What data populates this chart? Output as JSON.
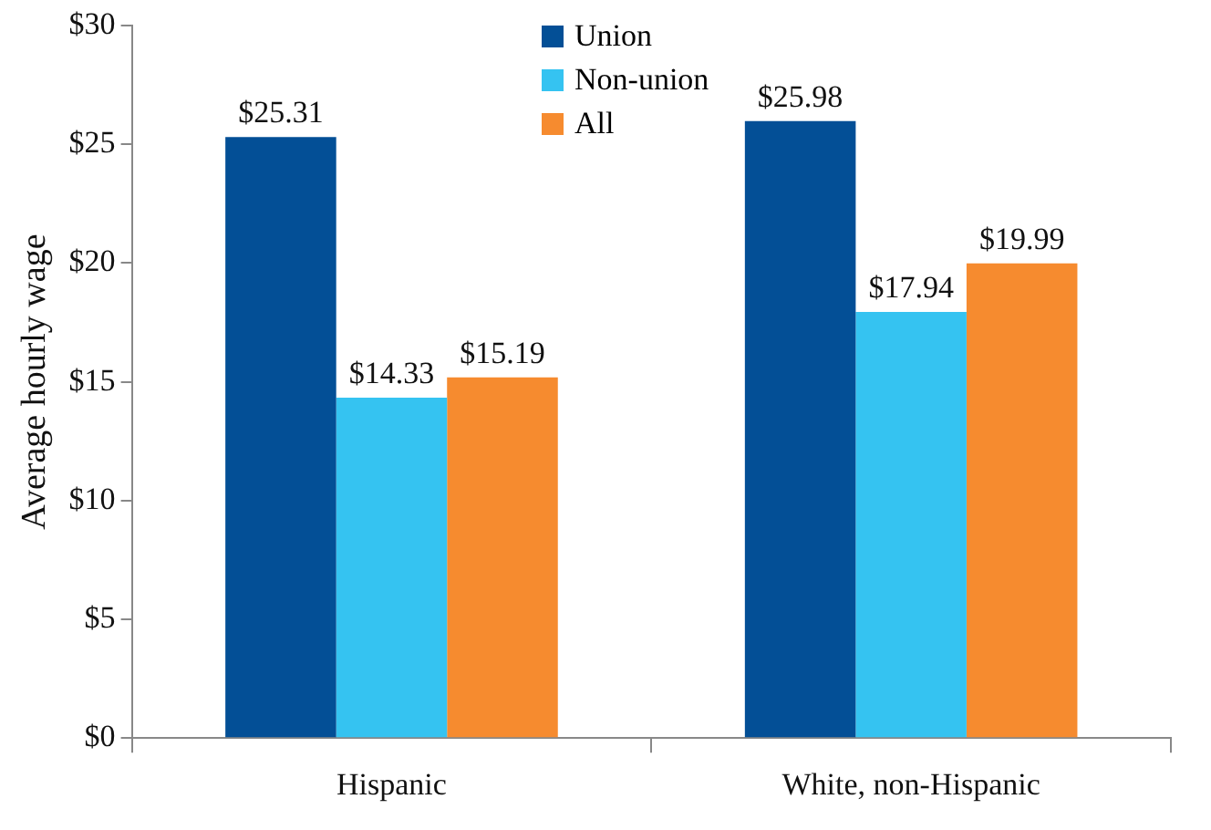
{
  "chart_data": {
    "type": "bar",
    "ylabel": "Average hourly wage",
    "categories": [
      "Hispanic",
      "White, non-Hispanic"
    ],
    "series": [
      {
        "name": "Union",
        "color": "#034f96",
        "values": [
          25.31,
          25.98
        ],
        "value_labels": [
          "$25.31",
          "$25.98"
        ]
      },
      {
        "name": "Non-union",
        "color": "#35c3f1",
        "values": [
          14.33,
          17.94
        ],
        "value_labels": [
          "$14.33",
          "$17.94"
        ]
      },
      {
        "name": "All",
        "color": "#f68b2f",
        "values": [
          15.19,
          19.99
        ],
        "value_labels": [
          "$15.19",
          "$19.99"
        ]
      }
    ],
    "ylim": [
      0,
      30
    ],
    "yticks": [
      {
        "value": 0,
        "label": "$0"
      },
      {
        "value": 5,
        "label": "$5"
      },
      {
        "value": 10,
        "label": "$10"
      },
      {
        "value": 15,
        "label": "$15"
      },
      {
        "value": 20,
        "label": "$20"
      },
      {
        "value": 25,
        "label": "$25"
      },
      {
        "value": 30,
        "label": "$30"
      }
    ],
    "grid": false,
    "legend": "top"
  }
}
